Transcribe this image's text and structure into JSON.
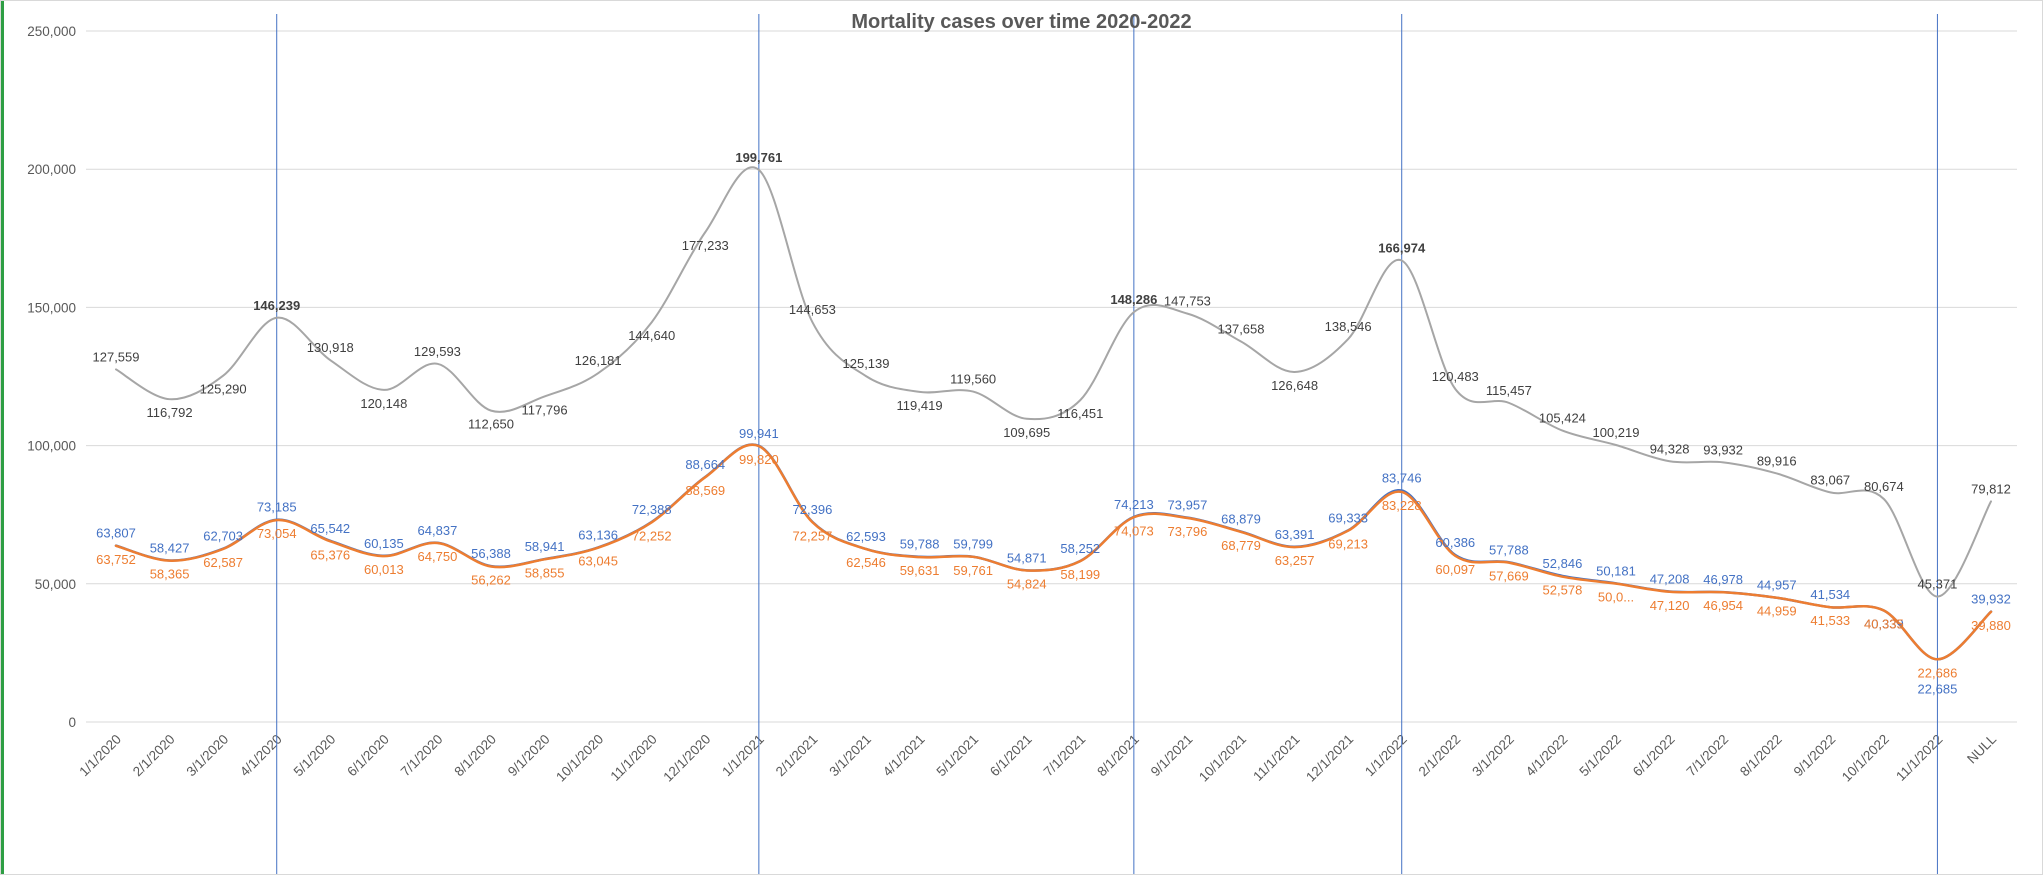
{
  "chart_data": {
    "type": "line",
    "title": "Mortality cases over time 2020-2022",
    "grid": true,
    "legend": "none",
    "y_axis": {
      "min": 0,
      "max": 250000,
      "step": 50000,
      "tick_labels": [
        "0",
        "50,000",
        "100,000",
        "150,000",
        "200,000",
        "250,000"
      ]
    },
    "categories": [
      "1/1/2020",
      "2/1/2020",
      "3/1/2020",
      "4/1/2020",
      "5/1/2020",
      "6/1/2020",
      "7/1/2020",
      "8/1/2020",
      "9/1/2020",
      "10/1/2020",
      "11/1/2020",
      "12/1/2020",
      "1/1/2021",
      "2/1/2021",
      "3/1/2021",
      "4/1/2021",
      "5/1/2021",
      "6/1/2021",
      "7/1/2021",
      "8/1/2021",
      "9/1/2021",
      "10/1/2021",
      "11/1/2021",
      "12/1/2021",
      "1/1/2022",
      "2/1/2022",
      "3/1/2022",
      "4/1/2022",
      "5/1/2022",
      "6/1/2022",
      "7/1/2022",
      "8/1/2022",
      "9/1/2022",
      "10/1/2022",
      "11/1/2022",
      "NULL"
    ],
    "series": [
      {
        "name": "gray-series",
        "color": "#a6a6a6",
        "label_color": "#404040",
        "stroke_width": 2,
        "values": [
          127559,
          116792,
          125290,
          146239,
          130918,
          120148,
          129593,
          112650,
          117796,
          126181,
          144640,
          177233,
          199761,
          144653,
          125139,
          119419,
          119560,
          109695,
          116451,
          148286,
          147753,
          137658,
          126648,
          138546,
          166974,
          120483,
          115457,
          105424,
          100219,
          94328,
          93932,
          89916,
          83067,
          80674,
          45371,
          79812
        ],
        "labels": [
          "127,559",
          "116,792",
          "125,290",
          "146,239",
          "130,918",
          "120,148",
          "129,593",
          "112,650",
          "117,796",
          "126,181",
          "144,640",
          "177,233",
          "199,761",
          "144,653",
          "125,139",
          "119,419",
          "119,560",
          "109,695",
          "116,451",
          "148,286",
          "147,753",
          "137,658",
          "126,648",
          "138,546",
          "166,974",
          "120,483",
          "115,457",
          "105,424",
          "100,219",
          "94,328",
          "93,932",
          "89,916",
          "83,067",
          "80,674",
          "45,371",
          "79,812"
        ],
        "bold_label_indices": [
          3,
          12,
          19,
          24
        ],
        "placements": [
          "a",
          "b",
          "b",
          "a",
          "a",
          "b",
          "a",
          "b",
          "b",
          "a",
          "b",
          "b",
          "a",
          "a",
          "a",
          "b",
          "a",
          "b",
          "b",
          "a",
          "a",
          "a",
          "b",
          "a",
          "a",
          "a",
          "a",
          "a",
          "a",
          "a",
          "a",
          "a",
          "a",
          "a",
          "a",
          "a"
        ]
      },
      {
        "name": "blue-series",
        "color": "#4472c4",
        "label_color": "#4472c4",
        "stroke_width": 2.5,
        "values": [
          63807,
          58427,
          62703,
          73185,
          65542,
          60135,
          64837,
          56388,
          58941,
          63136,
          72388,
          88664,
          99941,
          72396,
          62593,
          59788,
          59799,
          54871,
          58252,
          74213,
          73957,
          68879,
          63391,
          69333,
          83746,
          60386,
          57788,
          52846,
          50181,
          47208,
          46978,
          44957,
          41534,
          40339,
          22685,
          39932
        ],
        "labels": [
          "63,807",
          "58,427",
          "62,703",
          "73,185",
          "65,542",
          "60,135",
          "64,837",
          "56,388",
          "58,941",
          "63,136",
          "72,388",
          "88,664",
          "99,941",
          "72,396",
          "62,593",
          "59,788",
          "59,799",
          "54,871",
          "58,252",
          "74,213",
          "73,957",
          "68,879",
          "63,391",
          "69,333",
          "83,746",
          "60,386",
          "57,788",
          "52,846",
          "50,181",
          "47,208",
          "46,978",
          "44,957",
          "41,534",
          "40,339",
          "22,685",
          "39,932"
        ],
        "bold_label_indices": [],
        "placements": [
          "a",
          "a",
          "a",
          "a",
          "a",
          "a",
          "a",
          "a",
          "a",
          "a",
          "a",
          "a",
          "a",
          "a",
          "a",
          "a",
          "a",
          "a",
          "a",
          "a",
          "a",
          "a",
          "a",
          "a",
          "a",
          "a",
          "a",
          "a",
          "a",
          "a",
          "a",
          "a",
          "a",
          "b",
          "b2",
          "a"
        ]
      },
      {
        "name": "orange-series",
        "color": "#ed7d31",
        "label_color": "#ed7d31",
        "stroke_width": 2.5,
        "values": [
          63752,
          58365,
          62587,
          73054,
          65376,
          60013,
          64750,
          56262,
          58855,
          63045,
          72252,
          88569,
          99820,
          72257,
          62546,
          59631,
          59761,
          54824,
          58199,
          74073,
          73796,
          68779,
          63257,
          69213,
          83228,
          60097,
          57669,
          52578,
          50050,
          47120,
          46954,
          44959,
          41533,
          40335,
          22686,
          39880
        ],
        "labels": [
          "63,752",
          "58,365",
          "62,587",
          "73,054",
          "65,376",
          "60,013",
          "64,750",
          "56,262",
          "58,855",
          "63,045",
          "72,252",
          "88,569",
          "99,820",
          "72,257",
          "62,546",
          "59,631",
          "59,761",
          "54,824",
          "58,199",
          "74,073",
          "73,796",
          "68,779",
          "63,257",
          "69,213",
          "83,228",
          "60,097",
          "57,669",
          "52,578",
          "50,0...",
          "47,120",
          "46,954",
          "44,959",
          "41,533",
          "40,335",
          "22,686",
          "39,880"
        ],
        "bold_label_indices": [],
        "placements": [
          "b",
          "b",
          "b",
          "b",
          "b",
          "b",
          "b",
          "b",
          "b",
          "b",
          "b",
          "b",
          "b",
          "b",
          "b",
          "b",
          "b",
          "b",
          "b",
          "b",
          "b",
          "b",
          "b",
          "b",
          "b",
          "b",
          "b",
          "b",
          "b",
          "b",
          "b",
          "b",
          "b",
          "b",
          "b",
          "b"
        ]
      }
    ],
    "marker_lines": {
      "color": "#4472c4",
      "indices": [
        3,
        12,
        19,
        24,
        34
      ]
    },
    "colors": {
      "gridline": "#d9d9d9",
      "axis_text": "#595959",
      "title_text": "#595959",
      "left_accent": "#2e9e44"
    }
  }
}
